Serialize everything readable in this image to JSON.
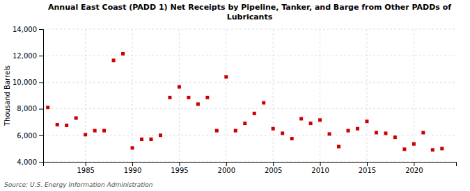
{
  "chart_data": {
    "type": "scatter",
    "title": "Annual East Coast (PADD 1) Net Receipts by Pipeline, Tanker, and Barge from Other PADDs of\nLubricants",
    "y_label": "Thousand Barrels",
    "annotations": [
      "Source: U.S. Energy Information Administration"
    ],
    "color": "#cc0000",
    "marker": "square",
    "grid": true,
    "x": [
      1981,
      1982,
      1983,
      1984,
      1985,
      1986,
      1987,
      1988,
      1989,
      1990,
      1991,
      1992,
      1993,
      1994,
      1995,
      1996,
      1997,
      1998,
      1999,
      2000,
      2001,
      2002,
      2003,
      2004,
      2005,
      2006,
      2007,
      2008,
      2009,
      2010,
      2011,
      2012,
      2013,
      2014,
      2015,
      2016,
      2017,
      2018,
      2019,
      2020,
      2021,
      2022,
      2023
    ],
    "values": [
      8100,
      6800,
      6750,
      7300,
      6050,
      6350,
      6350,
      11650,
      12150,
      5050,
      5700,
      5700,
      6000,
      8850,
      9650,
      8850,
      8350,
      8850,
      6350,
      10400,
      6350,
      6900,
      7650,
      8450,
      6500,
      6150,
      5750,
      7250,
      6900,
      7150,
      6100,
      5150,
      6350,
      6500,
      7050,
      6200,
      6150,
      5850,
      4950,
      5350,
      6200,
      4900,
      5000
    ],
    "xlim": [
      1980.5,
      2024.5
    ],
    "xticks": [
      1985,
      1990,
      1995,
      2000,
      2005,
      2010,
      2015,
      2020
    ],
    "ylim": [
      4000,
      14000
    ],
    "yticks": [
      {
        "value": 4000,
        "label": "4,000"
      },
      {
        "value": 6000,
        "label": "6,000"
      },
      {
        "value": 8000,
        "label": "8,000"
      },
      {
        "value": 10000,
        "label": "10,000"
      },
      {
        "value": 12000,
        "label": "12,000"
      },
      {
        "value": 14000,
        "label": "14,000"
      }
    ]
  }
}
